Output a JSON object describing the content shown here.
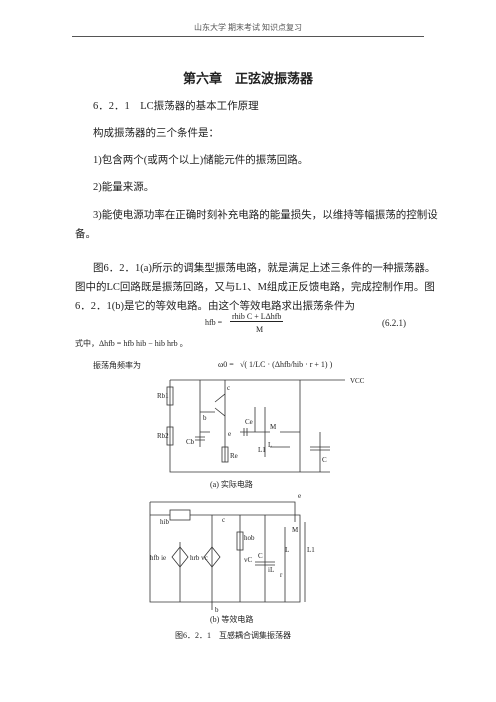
{
  "header": {
    "text": "山东大学 期末考试 知识点复习"
  },
  "title": "第六章　正弦波振荡器",
  "section": "6．2．1　LC振荡器的基本工作原理",
  "paragraphs": [
    "构成振荡器的三个条件是：",
    "1)包含两个(或两个以上)储能元件的振荡回路。",
    "2)能量来源。",
    "3)能使电源功率在正确时刻补充电路的能量损失，以维持等幅振荡的控制设",
    "备。",
    "图6．2．1(a)所示的调集型振荡电路，就是满足上述三条件的一种振荡器。",
    "图中的LC回路既是振荡回路，又与L1、M组成正反馈电路，完成控制作用。图",
    "6．2．1(b)是它的等效电路。由这个等效电路求出振荡条件为"
  ],
  "formula1": {
    "lhs": "hfb =",
    "numerator": "rhib C + LΔhfb",
    "denominator": "M",
    "number": "(6.2.1)"
  },
  "formula2": "式中，Δhfb = hfb hib − hib hrb 。",
  "formula3": {
    "text": "振荡角频率为",
    "lhs": "ω0 =",
    "expr": "√( 1/LC · (Δhfb/hib · r + 1) )"
  },
  "circuit_a": {
    "labels": [
      "Rb1",
      "Rb2",
      "Cb",
      "Re",
      "Ce",
      "C",
      "L",
      "L1",
      "M",
      "VCC",
      "b",
      "c",
      "e"
    ],
    "caption": "(a) 实际电路"
  },
  "circuit_b": {
    "labels": [
      "hib",
      "hfb ie",
      "hrb vc",
      "hob",
      "C",
      "L",
      "L1",
      "M",
      "iL",
      "r",
      "vC",
      "b",
      "c",
      "e"
    ],
    "caption": "(b) 等效电路"
  },
  "figure_caption": "图6．2．1　互感耦合调集振荡器"
}
